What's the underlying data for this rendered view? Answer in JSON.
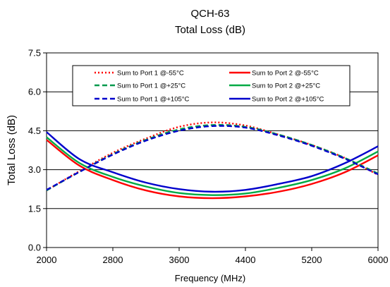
{
  "chart_data": {
    "type": "line",
    "title": "QCH-63",
    "subtitle": "Total Loss (dB)",
    "xlabel": "Frequency (MHz)",
    "ylabel": "Total Loss (dB)",
    "xlim": [
      2000,
      6000
    ],
    "ylim": [
      0,
      7.5
    ],
    "xticks": [
      "2000",
      "2800",
      "3600",
      "4400",
      "5200",
      "6000"
    ],
    "yticks": [
      "0.0",
      "1.5",
      "3.0",
      "4.5",
      "6.0",
      "7.5"
    ],
    "grid": "horizontal",
    "legend_position": "top-center",
    "x": [
      2000,
      2400,
      2800,
      3200,
      3600,
      4000,
      4400,
      4800,
      5200,
      5600,
      6000
    ],
    "series": [
      {
        "name": "Sum to Port 1 @-55°C",
        "color": "#ff0000",
        "dash": "dotted",
        "values": [
          2.2,
          2.95,
          3.65,
          4.2,
          4.65,
          4.82,
          4.7,
          4.35,
          3.95,
          3.45,
          2.8
        ]
      },
      {
        "name": "Sum to Port 2 @-55°C",
        "color": "#ff0000",
        "dash": "solid",
        "values": [
          4.15,
          3.15,
          2.6,
          2.2,
          1.97,
          1.9,
          1.97,
          2.15,
          2.45,
          2.9,
          3.55
        ]
      },
      {
        "name": "Sum to Port 1 @+25°C",
        "color": "#00994c",
        "dash": "dashed",
        "values": [
          2.2,
          2.92,
          3.6,
          4.15,
          4.55,
          4.72,
          4.65,
          4.35,
          3.95,
          3.45,
          2.85
        ]
      },
      {
        "name": "Sum to Port 2 @+25°C",
        "color": "#00aa44",
        "dash": "solid",
        "values": [
          4.25,
          3.25,
          2.72,
          2.35,
          2.1,
          2.02,
          2.08,
          2.3,
          2.6,
          3.05,
          3.7
        ]
      },
      {
        "name": "Sum to Port 1 @+105°C",
        "color": "#0000cc",
        "dash": "dashed",
        "values": [
          2.22,
          2.92,
          3.58,
          4.12,
          4.5,
          4.68,
          4.62,
          4.32,
          3.92,
          3.42,
          2.82
        ]
      },
      {
        "name": "Sum to Port 2 @+105°C",
        "color": "#0000cc",
        "dash": "solid",
        "values": [
          4.45,
          3.4,
          2.9,
          2.5,
          2.25,
          2.15,
          2.22,
          2.45,
          2.75,
          3.25,
          3.9
        ]
      }
    ]
  }
}
